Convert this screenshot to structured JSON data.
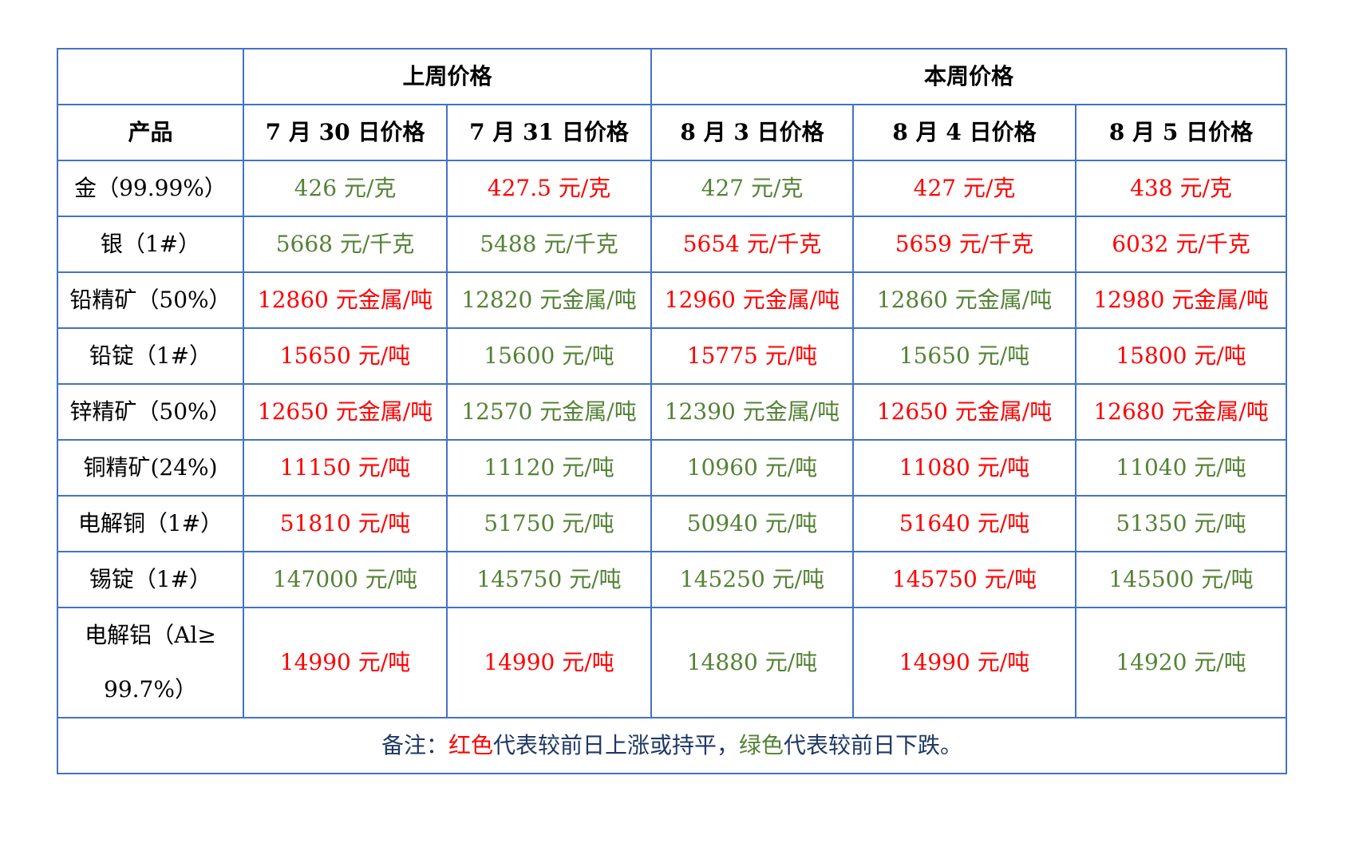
{
  "colors": {
    "border": "#4472c4",
    "up": "#ff0000",
    "down": "#548235",
    "note_text": "#1f3864"
  },
  "header": {
    "group_last_week": "上周价格",
    "group_this_week": "本周价格",
    "product_label": "产品",
    "dates": [
      "7 月 30 日价格",
      "7 月 31 日价格",
      "8 月 3 日价格",
      "8 月 4 日价格",
      "8 月 5 日价格"
    ]
  },
  "rows": [
    {
      "product": "金（99.99%）",
      "cells": [
        {
          "text": "426 元/克",
          "trend": "down"
        },
        {
          "text": "427.5 元/克",
          "trend": "up"
        },
        {
          "text": "427 元/克",
          "trend": "down"
        },
        {
          "text": "427 元/克",
          "trend": "up"
        },
        {
          "text": "438 元/克",
          "trend": "up"
        }
      ]
    },
    {
      "product": "银（1#）",
      "cells": [
        {
          "text": "5668 元/千克",
          "trend": "down"
        },
        {
          "text": "5488 元/千克",
          "trend": "down"
        },
        {
          "text": "5654 元/千克",
          "trend": "up"
        },
        {
          "text": "5659 元/千克",
          "trend": "up"
        },
        {
          "text": "6032 元/千克",
          "trend": "up"
        }
      ]
    },
    {
      "product": "铅精矿（50%）",
      "cells": [
        {
          "text": "12860 元金属/吨",
          "trend": "up"
        },
        {
          "text": "12820 元金属/吨",
          "trend": "down"
        },
        {
          "text": "12960 元金属/吨",
          "trend": "up"
        },
        {
          "text": "12860 元金属/吨",
          "trend": "down"
        },
        {
          "text": "12980 元金属/吨",
          "trend": "up"
        }
      ]
    },
    {
      "product": "铅锭（1#）",
      "cells": [
        {
          "text": "15650 元/吨",
          "trend": "up"
        },
        {
          "text": "15600 元/吨",
          "trend": "down"
        },
        {
          "text": "15775 元/吨",
          "trend": "up"
        },
        {
          "text": "15650 元/吨",
          "trend": "down"
        },
        {
          "text": "15800 元/吨",
          "trend": "up"
        }
      ]
    },
    {
      "product": "锌精矿（50%）",
      "cells": [
        {
          "text": "12650 元金属/吨",
          "trend": "up"
        },
        {
          "text": "12570 元金属/吨",
          "trend": "down"
        },
        {
          "text": "12390 元金属/吨",
          "trend": "down"
        },
        {
          "text": "12650 元金属/吨",
          "trend": "up"
        },
        {
          "text": "12680 元金属/吨",
          "trend": "up"
        }
      ]
    },
    {
      "product": "铜精矿(24%)",
      "cells": [
        {
          "text": "11150 元/吨",
          "trend": "up"
        },
        {
          "text": "11120 元/吨",
          "trend": "down"
        },
        {
          "text": "10960 元/吨",
          "trend": "down"
        },
        {
          "text": "11080 元/吨",
          "trend": "up"
        },
        {
          "text": "11040 元/吨",
          "trend": "down"
        }
      ]
    },
    {
      "product": "电解铜（1#）",
      "cells": [
        {
          "text": "51810 元/吨",
          "trend": "up"
        },
        {
          "text": "51750 元/吨",
          "trend": "down"
        },
        {
          "text": "50940 元/吨",
          "trend": "down"
        },
        {
          "text": "51640 元/吨",
          "trend": "up"
        },
        {
          "text": "51350 元/吨",
          "trend": "down"
        }
      ]
    },
    {
      "product": "锡锭（1#）",
      "cells": [
        {
          "text": "147000 元/吨",
          "trend": "down"
        },
        {
          "text": "145750 元/吨",
          "trend": "down"
        },
        {
          "text": "145250 元/吨",
          "trend": "down"
        },
        {
          "text": "145750 元/吨",
          "trend": "up"
        },
        {
          "text": "145500 元/吨",
          "trend": "down"
        }
      ]
    },
    {
      "product_line1": "电解铝（Al≥",
      "product_line2": "99.7%）",
      "cells": [
        {
          "text": "14990 元/吨",
          "trend": "up"
        },
        {
          "text": "14990 元/吨",
          "trend": "up"
        },
        {
          "text": "14880 元/吨",
          "trend": "down"
        },
        {
          "text": "14990 元/吨",
          "trend": "up"
        },
        {
          "text": "14920 元/吨",
          "trend": "down"
        }
      ]
    }
  ],
  "note": {
    "prefix": "备注：",
    "red_word": "红色",
    "red_desc": "代表较前日上涨或持平，",
    "green_word": "绿色",
    "green_desc": "代表较前日下跌。"
  }
}
